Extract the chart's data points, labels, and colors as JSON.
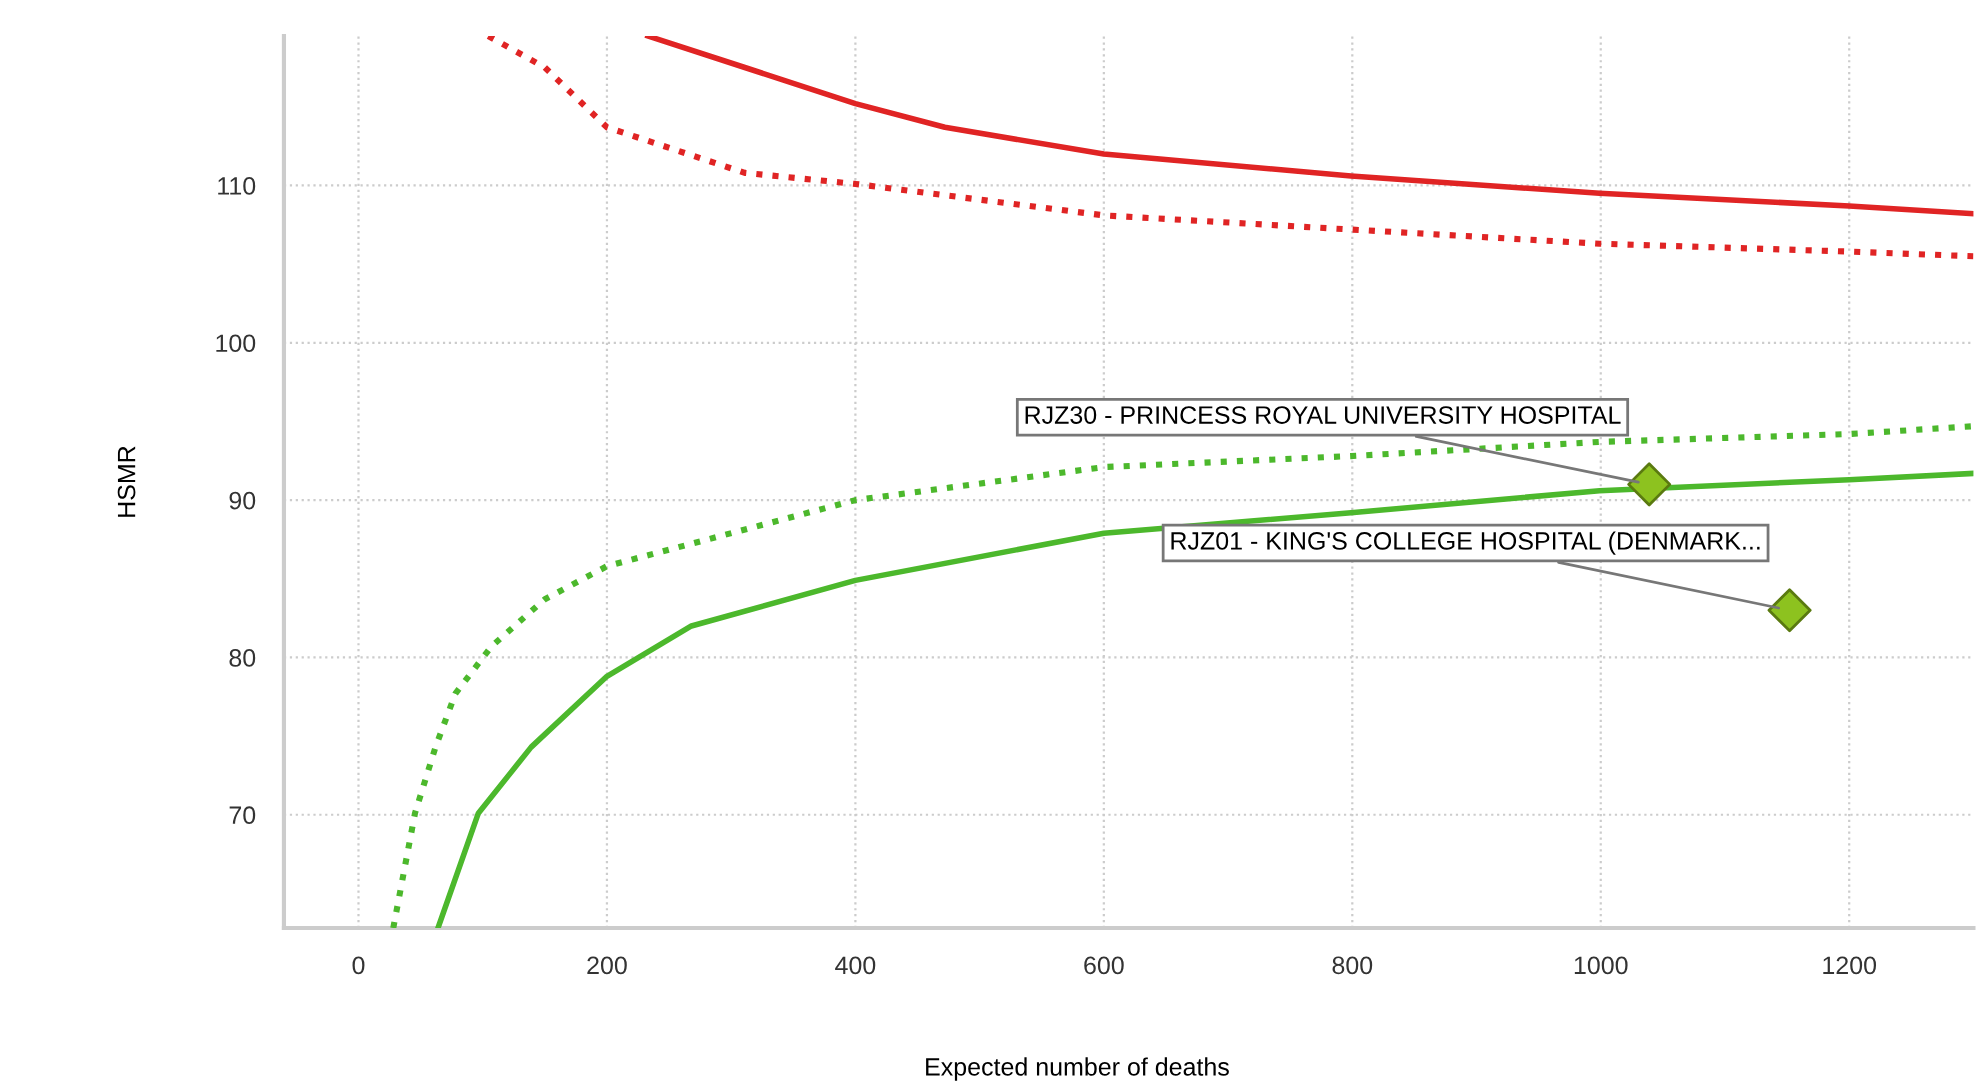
{
  "chart_data": {
    "type": "line",
    "xlabel": "Expected number of deaths",
    "ylabel": "HSMR",
    "xlim": [
      -60,
      1300
    ],
    "ylim": [
      62.8,
      119.5
    ],
    "xticks": [
      0,
      200,
      400,
      600,
      800,
      1000,
      1200
    ],
    "yticks": [
      70,
      80,
      90,
      100,
      110
    ],
    "grid": true,
    "series": [
      {
        "line_style": "solid",
        "marker": "none",
        "color": "#e02424",
        "x": [
          233,
          311,
          400,
          472,
          600,
          799,
          999,
          1200,
          1300
        ],
        "values": [
          119.5,
          117.5,
          115.2,
          113.7,
          112.0,
          110.6,
          109.5,
          108.7,
          108.2
        ]
      },
      {
        "line_style": "dotted",
        "marker": "none",
        "color": "#e02424",
        "x": [
          104.5,
          150,
          200,
          311,
          400,
          600,
          799,
          999,
          1200,
          1300
        ],
        "values": [
          119.5,
          117.5,
          113.7,
          110.8,
          110.1,
          108.1,
          107.2,
          106.3,
          105.8,
          105.5
        ]
      },
      {
        "line_style": "dotted",
        "marker": "none",
        "color": "#4cb82c",
        "x": [
          28,
          45.5,
          62,
          78,
          107,
          150,
          200,
          400,
          600,
          799,
          999,
          1200,
          1300
        ],
        "values": [
          62.8,
          70.1,
          74.3,
          77.7,
          80.7,
          83.7,
          85.8,
          90.0,
          92.1,
          92.8,
          93.7,
          94.2,
          94.7
        ]
      },
      {
        "line_style": "solid",
        "marker": "none",
        "color": "#4cb82c",
        "x": [
          64,
          96.5,
          139,
          200,
          268,
          400,
          600,
          799,
          999,
          1200,
          1300
        ],
        "values": [
          62.8,
          70.1,
          74.3,
          78.8,
          82.0,
          84.9,
          87.9,
          89.2,
          90.6,
          91.3,
          91.7
        ]
      },
      {
        "type": "scatter",
        "marker": "diamond",
        "color": "#8dc21f",
        "x": [
          1039,
          1152
        ],
        "values": [
          91.0,
          83.0
        ]
      }
    ],
    "annotations": [
      {
        "text": "RJZ30 - PRINCESS ROYAL UNIVERSITY HOSPITAL",
        "x": 1039,
        "y": 91.0
      },
      {
        "text": "RJZ01 - KING'S COLLEGE HOSPITAL (DENMARK...",
        "x": 1152,
        "y": 83.0
      }
    ]
  }
}
